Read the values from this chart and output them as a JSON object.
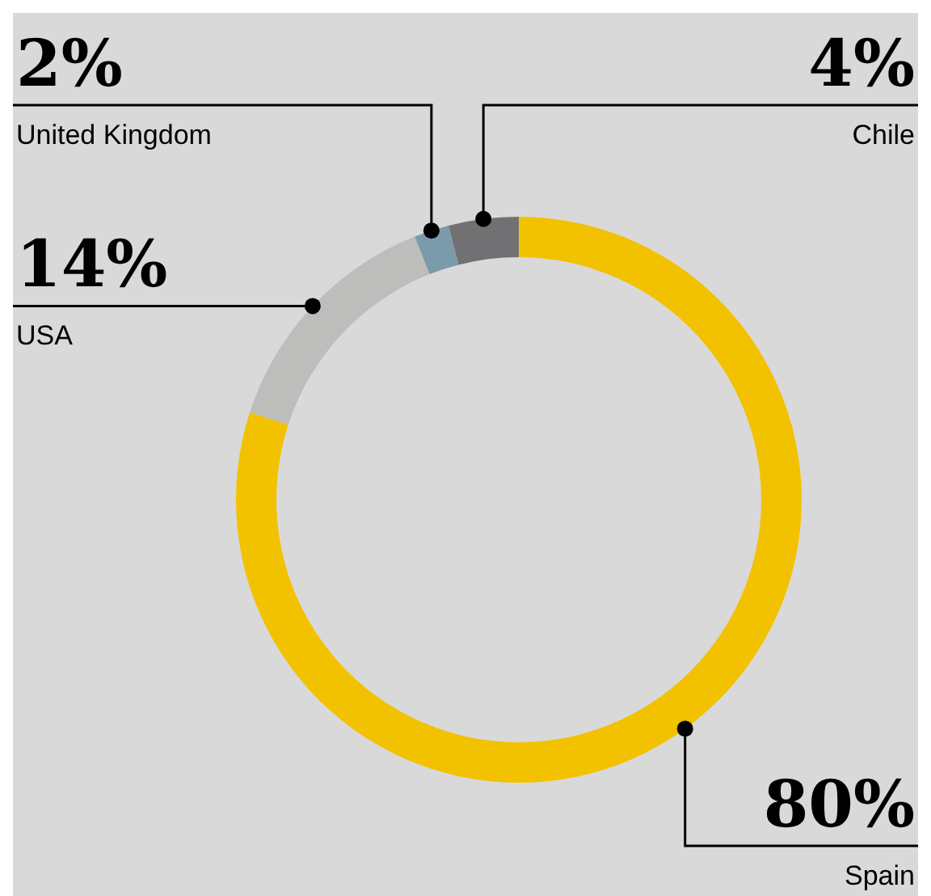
{
  "chart_data": {
    "type": "donut",
    "categories": [
      "Spain",
      "USA",
      "United Kingdom",
      "Chile"
    ],
    "values": [
      80,
      14,
      2,
      4
    ],
    "colors": [
      "#f2c200",
      "#bdbdbb",
      "#7b9bab",
      "#717173"
    ],
    "value_labels": [
      "80%",
      "14%",
      "2%",
      "4%"
    ]
  }
}
